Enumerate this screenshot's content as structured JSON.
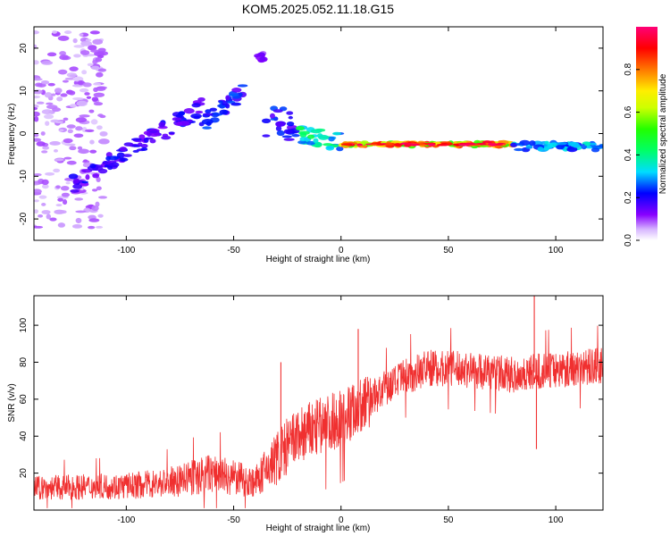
{
  "title": "KOM5.2025.052.11.18.G15",
  "colors": {
    "snr_line": "#f03030",
    "axis": "#000000"
  },
  "chart_data": [
    {
      "type": "heatmap",
      "xlabel": "Height of straight line (km)",
      "ylabel": "Frequency (Hz)",
      "xlim": [
        -143,
        122
      ],
      "ylim": [
        -25,
        25
      ],
      "x_ticks": [
        -100,
        -50,
        0,
        50,
        100
      ],
      "y_ticks": [
        -20,
        -10,
        0,
        10,
        20
      ],
      "grid": false,
      "colorbar": {
        "label": "Normalized spectral amplitude",
        "range": [
          0,
          1
        ],
        "ticks": [
          0.0,
          0.2,
          0.4,
          0.6,
          0.8
        ],
        "tick_labels": [
          "0.0",
          "0.2",
          "0.4",
          "0.6",
          "0.8"
        ],
        "placement": "right"
      },
      "features": [
        {
          "x": [
            -143,
            -110
          ],
          "y": [
            -22,
            24
          ],
          "amplitude": 0.08,
          "note": "scattered noise"
        },
        {
          "x": [
            -125,
            -65
          ],
          "y_start": -12,
          "y_end": 6,
          "amplitude": 0.22
        },
        {
          "x": [
            -65,
            -45
          ],
          "y_start": 2,
          "y_end": 10,
          "amplitude": 0.25
        },
        {
          "x": [
            -38,
            -36
          ],
          "y": [
            17,
            19
          ],
          "amplitude": 0.15
        },
        {
          "x": [
            -35,
            -20
          ],
          "y": [
            -2,
            6
          ],
          "amplitude": 0.25
        },
        {
          "x": [
            -20,
            0
          ],
          "y_start": 0,
          "y_end": -2,
          "amplitude": 0.45
        },
        {
          "x": [
            0,
            80
          ],
          "y": -2.5,
          "amplitude": 0.9,
          "note": "main trace"
        },
        {
          "x": [
            80,
            122
          ],
          "y": -3,
          "amplitude": 0.35
        }
      ]
    },
    {
      "type": "line",
      "xlabel": "Height of straight line (km)",
      "ylabel": "SNR (v/v)",
      "xlim": [
        -143,
        122
      ],
      "ylim": [
        0,
        116
      ],
      "x_ticks": [
        -100,
        -50,
        0,
        50,
        100
      ],
      "y_ticks": [
        20,
        40,
        60,
        80,
        100
      ],
      "grid": false,
      "trend": {
        "x": [
          -143,
          -100,
          -80,
          -60,
          -40,
          -30,
          -20,
          -10,
          0,
          10,
          20,
          30,
          40,
          60,
          80,
          100,
          122
        ],
        "y": [
          12,
          13,
          15,
          20,
          15,
          28,
          40,
          45,
          50,
          57,
          65,
          72,
          77,
          76,
          73,
          76,
          78
        ]
      },
      "spikes": [
        {
          "x": -28,
          "y": 80
        },
        {
          "x": 8,
          "y": 98
        },
        {
          "x": 90,
          "y": 116
        },
        {
          "x": 91,
          "y": 33
        }
      ]
    }
  ]
}
